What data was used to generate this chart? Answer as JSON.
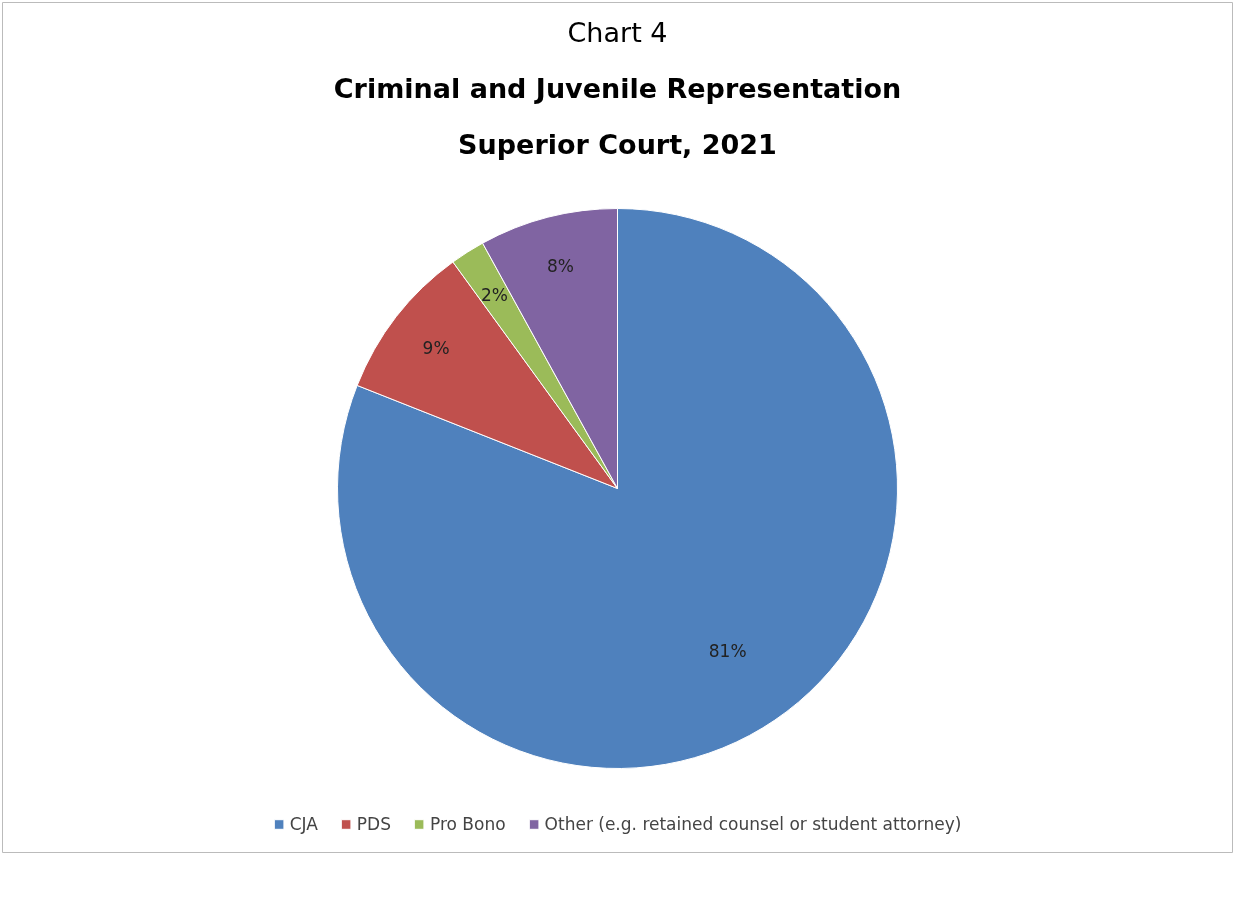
{
  "chart_data": {
    "type": "pie",
    "title": "Chart 4",
    "subtitle": "Criminal and Juvenile Representation\nSuperior Court, 2021",
    "categories": [
      "CJA",
      "PDS",
      "Pro Bono",
      "Other (e.g. retained counsel or student attorney)"
    ],
    "values": [
      81,
      9,
      2,
      8
    ],
    "colors": [
      "#4f81bd",
      "#c0504d",
      "#9bbb59",
      "#8064a2"
    ],
    "value_labels": [
      "81%",
      "9%",
      "2%",
      "8%"
    ],
    "legend": "bottom"
  }
}
